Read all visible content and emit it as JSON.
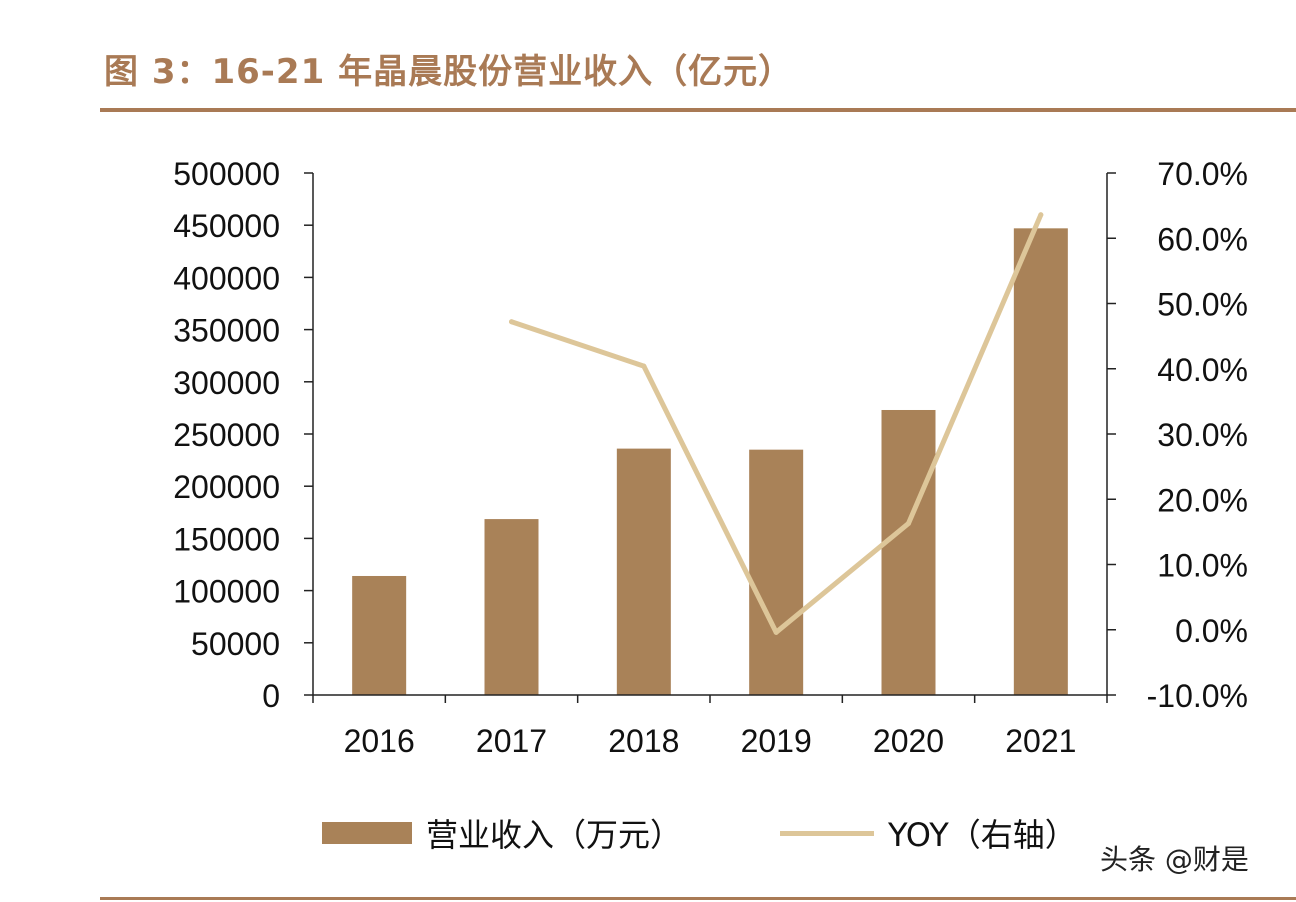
{
  "title": "图 3：16-21 年晶晨股份营业收入（亿元）",
  "watermark": "头条 @财是",
  "colors": {
    "bar": "#a98258",
    "line": "#ddc699",
    "accent": "#a97a55",
    "axis": "#222222"
  },
  "chart_data": {
    "type": "bar",
    "categories": [
      "2016",
      "2017",
      "2018",
      "2019",
      "2020",
      "2021"
    ],
    "series": [
      {
        "name": "营业收入（万元）",
        "type": "bar",
        "axis": "left",
        "values": [
          114000,
          168500,
          236000,
          235000,
          273000,
          447000
        ]
      },
      {
        "name": "YOY（右轴）",
        "type": "line",
        "axis": "right",
        "values": [
          null,
          0.472,
          0.404,
          -0.004,
          0.163,
          0.636
        ]
      }
    ],
    "y_left": {
      "min": 0,
      "max": 500000,
      "step": 50000,
      "tick_labels": [
        "0",
        "50000",
        "100000",
        "150000",
        "200000",
        "250000",
        "300000",
        "350000",
        "400000",
        "450000",
        "500000"
      ]
    },
    "y_right": {
      "min": -0.1,
      "max": 0.7,
      "step": 0.1,
      "tick_labels": [
        "-10.0%",
        "0.0%",
        "10.0%",
        "20.0%",
        "30.0%",
        "40.0%",
        "50.0%",
        "60.0%",
        "70.0%"
      ]
    },
    "legend_position": "bottom",
    "grid": false
  }
}
